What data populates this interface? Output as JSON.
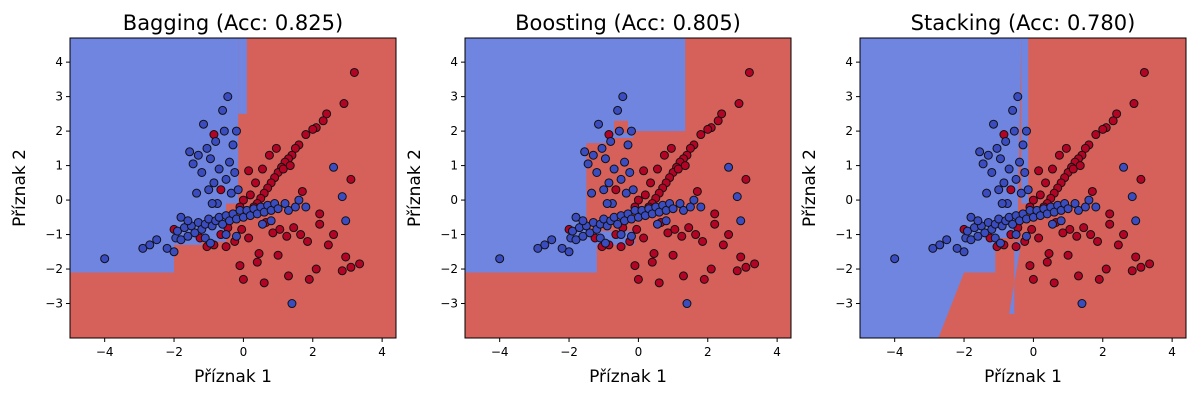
{
  "figure": {
    "colors": {
      "class_red_region": "#d6615a",
      "class_blue_region": "#7085e0",
      "class_red_point": "#b40426",
      "class_blue_point": "#3b4cc0",
      "point_edge": "#111111"
    }
  },
  "chart_data": [
    {
      "type": "scatter",
      "title": "Bagging (Acc: 0.825)",
      "xlabel": "Příznak 1",
      "ylabel": "Příznak 2",
      "xlim": [
        -5,
        4.4
      ],
      "ylim": [
        -4,
        4.7
      ],
      "xticks": [
        "−4",
        "−2",
        "0",
        "2",
        "4"
      ],
      "yticks": [
        "−3",
        "−2",
        "−1",
        "0",
        "1",
        "2",
        "3",
        "4"
      ],
      "background": "decision-regions",
      "series_ref": "points"
    },
    {
      "type": "scatter",
      "title": "Boosting (Acc: 0.805)",
      "xlabel": "Příznak 1",
      "ylabel": "Příznak 2",
      "xlim": [
        -5,
        4.4
      ],
      "ylim": [
        -4,
        4.7
      ],
      "xticks": [
        "−4",
        "−2",
        "0",
        "2",
        "4"
      ],
      "yticks": [
        "−3",
        "−2",
        "−1",
        "0",
        "1",
        "2",
        "3",
        "4"
      ],
      "background": "decision-regions",
      "series_ref": "points"
    },
    {
      "type": "scatter",
      "title": "Stacking (Acc: 0.780)",
      "xlabel": "Příznak 1",
      "ylabel": "Příznak 2",
      "xlim": [
        -5,
        4.4
      ],
      "ylim": [
        -4,
        4.7
      ],
      "xticks": [
        "−4",
        "−2",
        "0",
        "2",
        "4"
      ],
      "yticks": [
        "−3",
        "−2",
        "−1",
        "0",
        "1",
        "2",
        "3",
        "4"
      ],
      "background": "decision-regions",
      "series_ref": "points"
    }
  ],
  "points": {
    "class_0_blue": [
      [
        -4.0,
        -1.7
      ],
      [
        -2.9,
        -1.4
      ],
      [
        -2.7,
        -1.3
      ],
      [
        -2.5,
        -1.15
      ],
      [
        -2.2,
        -1.4
      ],
      [
        -2.0,
        -1.5
      ],
      [
        -1.95,
        -1.1
      ],
      [
        -1.9,
        -0.9
      ],
      [
        -1.8,
        -1.15
      ],
      [
        -1.7,
        -0.8
      ],
      [
        -1.6,
        -1.05
      ],
      [
        -1.5,
        -0.75
      ],
      [
        -1.4,
        -0.95
      ],
      [
        -1.3,
        -0.65
      ],
      [
        -1.2,
        -0.85
      ],
      [
        -1.1,
        -0.7
      ],
      [
        -1.0,
        -0.55
      ],
      [
        -0.9,
        -0.75
      ],
      [
        -0.8,
        -0.6
      ],
      [
        -0.7,
        -0.5
      ],
      [
        -0.6,
        -0.7
      ],
      [
        -0.5,
        -0.45
      ],
      [
        -0.4,
        -0.6
      ],
      [
        -0.3,
        -0.4
      ],
      [
        -0.2,
        -0.55
      ],
      [
        -0.1,
        -0.3
      ],
      [
        0.0,
        -0.5
      ],
      [
        0.1,
        -0.3
      ],
      [
        0.2,
        -0.45
      ],
      [
        0.3,
        -0.25
      ],
      [
        0.4,
        -0.4
      ],
      [
        0.5,
        -0.2
      ],
      [
        0.6,
        -0.35
      ],
      [
        0.7,
        -0.15
      ],
      [
        0.8,
        -0.3
      ],
      [
        0.9,
        -0.1
      ],
      [
        1.0,
        -0.25
      ],
      [
        1.2,
        -0.1
      ],
      [
        1.3,
        -0.3
      ],
      [
        1.5,
        -0.2
      ],
      [
        1.6,
        0.0
      ],
      [
        1.8,
        -0.2
      ],
      [
        -1.55,
        1.4
      ],
      [
        -1.45,
        1.05
      ],
      [
        -1.3,
        1.3
      ],
      [
        -1.2,
        0.8
      ],
      [
        -1.15,
        2.2
      ],
      [
        -1.05,
        1.5
      ],
      [
        -1.0,
        0.3
      ],
      [
        -0.95,
        1.2
      ],
      [
        -0.85,
        0.5
      ],
      [
        -0.8,
        1.7
      ],
      [
        -0.75,
        -0.1
      ],
      [
        -0.7,
        0.9
      ],
      [
        -0.6,
        2.6
      ],
      [
        -0.55,
        2.0
      ],
      [
        -0.5,
        0.6
      ],
      [
        -0.45,
        3.0
      ],
      [
        -0.4,
        1.1
      ],
      [
        -0.35,
        0.2
      ],
      [
        -0.3,
        1.6
      ],
      [
        -0.2,
        2.0
      ],
      [
        -0.25,
        0.8
      ],
      [
        -0.15,
        0.3
      ],
      [
        -1.35,
        0.2
      ],
      [
        -0.9,
        -0.1
      ],
      [
        -1.1,
        -1.1
      ],
      [
        -1.8,
        -0.5
      ],
      [
        -0.5,
        -1.0
      ],
      [
        0.8,
        -0.6
      ],
      [
        2.6,
        0.95
      ],
      [
        2.85,
        0.1
      ],
      [
        2.95,
        -0.6
      ],
      [
        1.4,
        -3.0
      ],
      [
        -0.95,
        -1.25
      ],
      [
        -0.2,
        -1.05
      ],
      [
        0.55,
        -0.7
      ],
      [
        -1.6,
        -0.6
      ]
    ],
    "class_1_red": [
      [
        3.2,
        3.7
      ],
      [
        2.9,
        2.8
      ],
      [
        2.4,
        2.5
      ],
      [
        2.3,
        2.3
      ],
      [
        2.1,
        2.1
      ],
      [
        2.0,
        2.05
      ],
      [
        1.8,
        1.9
      ],
      [
        1.6,
        1.6
      ],
      [
        1.5,
        1.5
      ],
      [
        1.4,
        1.3
      ],
      [
        1.3,
        1.2
      ],
      [
        1.2,
        1.1
      ],
      [
        1.1,
        0.95
      ],
      [
        1.0,
        0.8
      ],
      [
        0.9,
        0.65
      ],
      [
        0.8,
        0.5
      ],
      [
        0.7,
        0.35
      ],
      [
        0.6,
        0.2
      ],
      [
        0.5,
        0.05
      ],
      [
        0.4,
        -0.1
      ],
      [
        0.3,
        -0.2
      ],
      [
        0.2,
        0.15
      ],
      [
        0.1,
        -0.35
      ],
      [
        0.0,
        0.0
      ],
      [
        -0.1,
        -0.2
      ],
      [
        0.55,
        0.9
      ],
      [
        0.75,
        1.3
      ],
      [
        0.95,
        1.5
      ],
      [
        1.15,
        0.9
      ],
      [
        1.35,
        1.0
      ],
      [
        0.65,
        -0.65
      ],
      [
        0.85,
        -0.95
      ],
      [
        1.05,
        -0.85
      ],
      [
        1.25,
        -1.05
      ],
      [
        1.45,
        -0.8
      ],
      [
        1.65,
        -1.0
      ],
      [
        1.85,
        -1.2
      ],
      [
        2.2,
        -0.7
      ],
      [
        2.45,
        -1.3
      ],
      [
        0.15,
        -1.1
      ],
      [
        -0.05,
        -0.85
      ],
      [
        -0.25,
        -1.2
      ],
      [
        -0.45,
        -0.8
      ],
      [
        -0.65,
        -1.0
      ],
      [
        -0.85,
        -1.3
      ],
      [
        -1.05,
        -1.35
      ],
      [
        -1.25,
        -1.1
      ],
      [
        -2.0,
        -0.85
      ],
      [
        3.1,
        0.6
      ],
      [
        2.95,
        -1.65
      ],
      [
        3.1,
        -1.95
      ],
      [
        3.35,
        -1.85
      ],
      [
        2.85,
        -2.05
      ],
      [
        2.1,
        -2.0
      ],
      [
        1.9,
        -2.3
      ],
      [
        1.3,
        -2.2
      ],
      [
        0.6,
        -2.4
      ],
      [
        0.0,
        -2.3
      ],
      [
        -0.1,
        -1.9
      ],
      [
        0.4,
        -1.8
      ],
      [
        1.0,
        -1.6
      ],
      [
        -0.65,
        0.3
      ],
      [
        -0.85,
        1.9
      ],
      [
        0.35,
        0.5
      ],
      [
        0.15,
        0.85
      ],
      [
        1.7,
        0.25
      ],
      [
        2.2,
        -0.4
      ],
      [
        0.45,
        -1.55
      ],
      [
        -0.5,
        -1.35
      ],
      [
        2.6,
        -1.0
      ]
    ]
  }
}
